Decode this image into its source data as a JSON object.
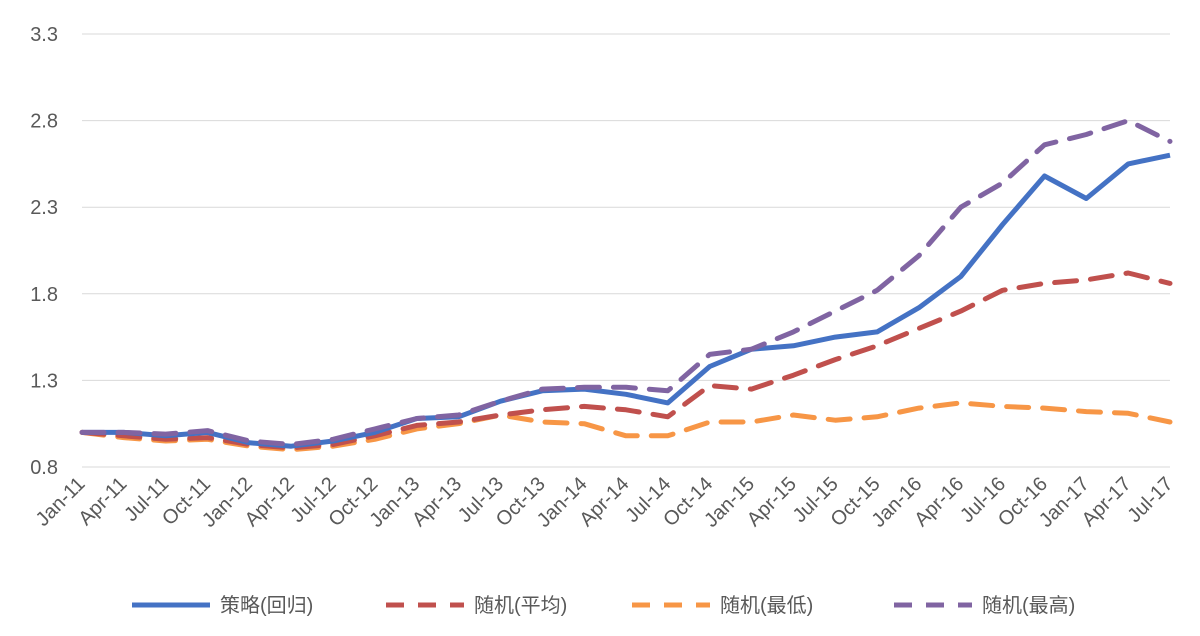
{
  "chart_data": {
    "type": "line",
    "title": "",
    "xlabel": "",
    "ylabel": "",
    "ylim": [
      0.8,
      3.3
    ],
    "yticks": [
      "0.8",
      "1.3",
      "1.8",
      "2.3",
      "2.8",
      "3.3"
    ],
    "grid": true,
    "legend_position": "bottom",
    "x": [
      "Jan-11",
      "Apr-11",
      "Jul-11",
      "Oct-11",
      "Jan-12",
      "Apr-12",
      "Jul-12",
      "Oct-12",
      "Jan-13",
      "Apr-13",
      "Jul-13",
      "Oct-13",
      "Jan-14",
      "Apr-14",
      "Jul-14",
      "Oct-14",
      "Jan-15",
      "Apr-15",
      "Jul-15",
      "Oct-15",
      "Jan-16",
      "Apr-16",
      "Jul-16",
      "Oct-16",
      "Jan-17",
      "Apr-17",
      "Jul-17"
    ],
    "series": [
      {
        "name": "策略(回归)",
        "color": "#4472c4",
        "style": "solid",
        "values": [
          1.0,
          1.0,
          0.98,
          1.0,
          0.94,
          0.92,
          0.95,
          1.0,
          1.08,
          1.09,
          1.18,
          1.24,
          1.25,
          1.22,
          1.17,
          1.38,
          1.48,
          1.5,
          1.55,
          1.58,
          1.72,
          1.9,
          2.2,
          2.48,
          2.35,
          2.55,
          2.6
        ]
      },
      {
        "name": "随机(平均)",
        "color": "#c0504d",
        "style": "dashed",
        "values": [
          1.0,
          0.98,
          0.96,
          0.97,
          0.93,
          0.91,
          0.93,
          0.98,
          1.04,
          1.06,
          1.1,
          1.13,
          1.15,
          1.13,
          1.09,
          1.27,
          1.25,
          1.33,
          1.42,
          1.5,
          1.6,
          1.7,
          1.82,
          1.86,
          1.88,
          1.92,
          1.86
        ]
      },
      {
        "name": "随机(最低)",
        "color": "#f79646",
        "style": "dashed",
        "values": [
          1.0,
          0.97,
          0.95,
          0.96,
          0.92,
          0.9,
          0.92,
          0.96,
          1.02,
          1.05,
          1.1,
          1.06,
          1.05,
          0.98,
          0.98,
          1.06,
          1.06,
          1.1,
          1.07,
          1.09,
          1.14,
          1.17,
          1.15,
          1.14,
          1.12,
          1.11,
          1.06
        ]
      },
      {
        "name": "随机(最高)",
        "color": "#8064a2",
        "style": "dashed",
        "values": [
          1.0,
          1.0,
          0.99,
          1.01,
          0.95,
          0.93,
          0.96,
          1.02,
          1.08,
          1.1,
          1.18,
          1.25,
          1.26,
          1.26,
          1.24,
          1.45,
          1.48,
          1.58,
          1.7,
          1.82,
          2.02,
          2.3,
          2.44,
          2.66,
          2.72,
          2.8,
          2.68
        ]
      }
    ]
  }
}
